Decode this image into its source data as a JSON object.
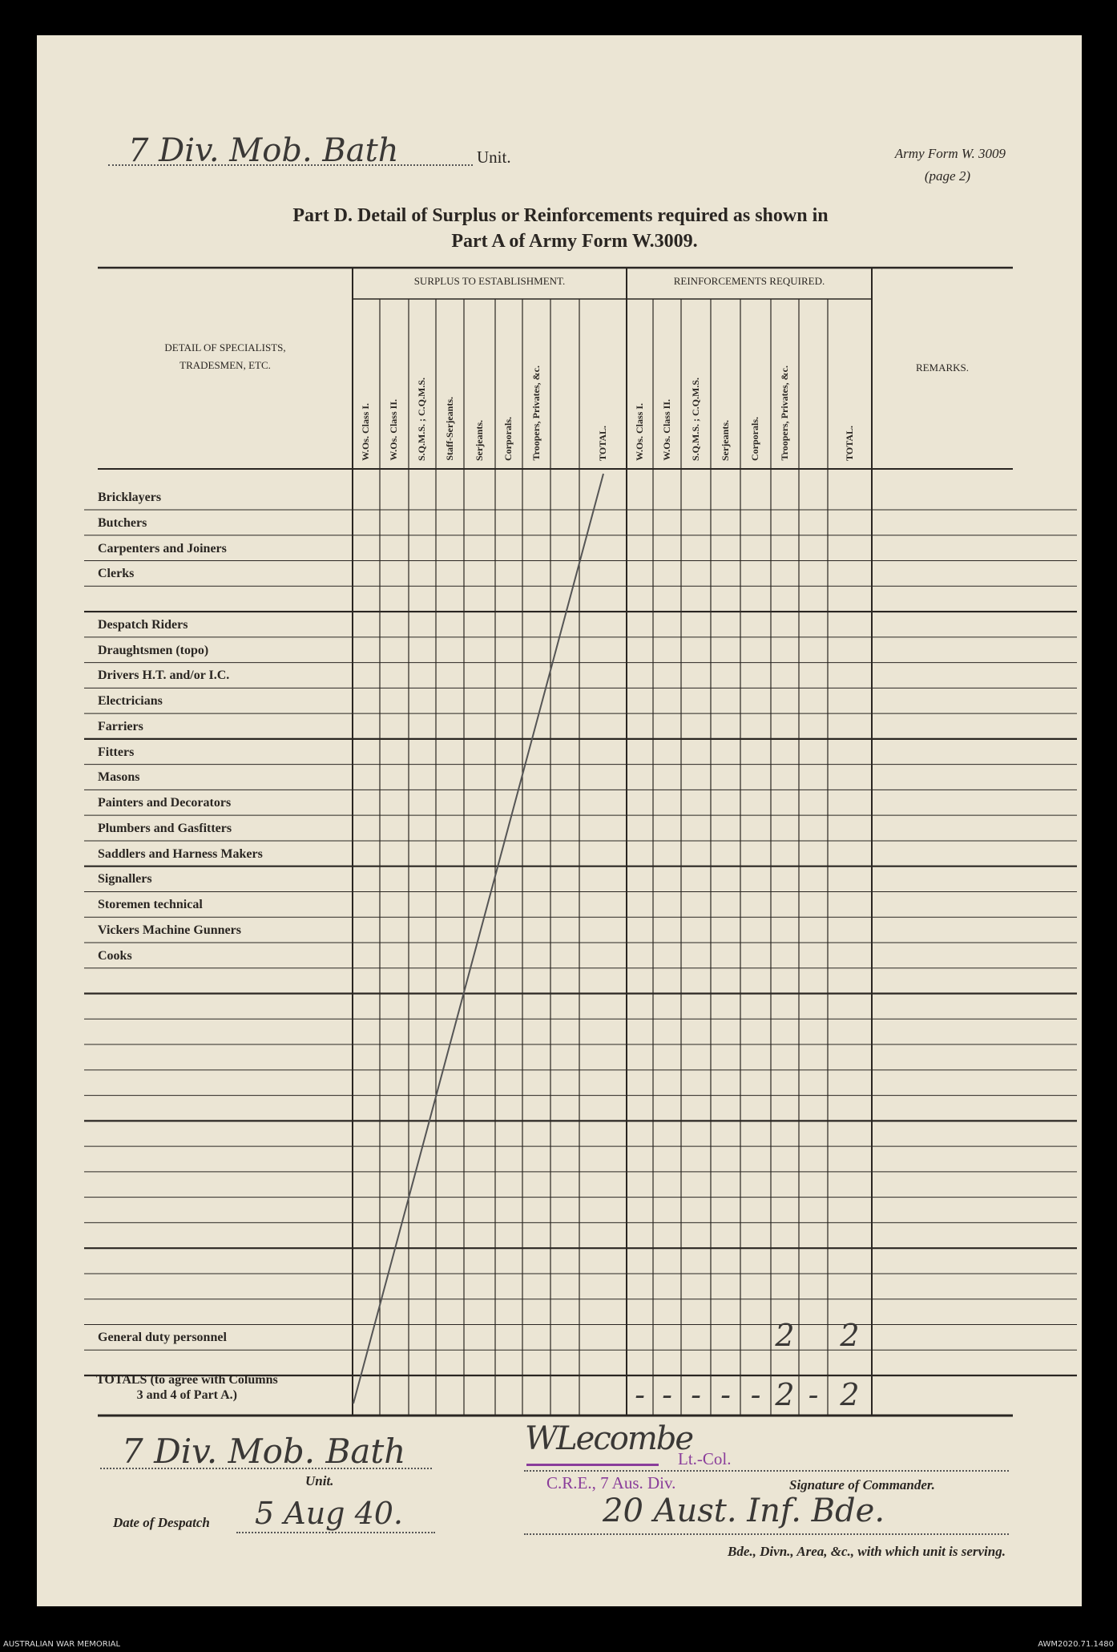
{
  "header": {
    "unit_handwritten": "7 Div. Mob. Bath",
    "unit_label": "Unit.",
    "form_name": "Army Form W. 3009",
    "form_page": "(page 2)",
    "title_line1": "Part D.   Detail of Surplus or Reinforcements required as shown in",
    "title_line2": "Part A of Army Form W.3009."
  },
  "table": {
    "detail_header_line1": "DETAIL OF SPECIALISTS,",
    "detail_header_line2": "TRADESMEN, ETC.",
    "surplus_header": "SURPLUS TO ESTABLISHMENT.",
    "reinforcements_header": "REINFORCEMENTS REQUIRED.",
    "remarks_header": "REMARKS.",
    "surplus_columns": [
      "W.Os. Class I.",
      "W.Os. Class II.",
      "S.Q.M.S. ; C.Q.M.S.",
      "Staff-Serjeants.",
      "Serjeants.",
      "Corporals.",
      "Troopers, Privates, &c.",
      "",
      "TOTAL."
    ],
    "reinforcement_columns": [
      "W.Os. Class I.",
      "W.Os. Class II.",
      "S.Q.M.S. ; C.Q.M.S.",
      "Serjeants.",
      "Corporals.",
      "Troopers, Privates, &c.",
      "",
      "TOTAL."
    ],
    "rows": [
      "Bricklayers",
      "Butchers",
      "Carpenters and Joiners",
      "Clerks",
      "",
      "Despatch Riders",
      "Draughtsmen (topo)",
      "Drivers H.T. and/or I.C.",
      "Electricians",
      "Farriers",
      "Fitters",
      "Masons",
      "Painters and Decorators",
      "Plumbers and Gasfitters",
      "Saddlers and Harness Makers",
      "Signallers",
      "Storemen technical",
      "Vickers Machine Gunners",
      "Cooks",
      "",
      "",
      "",
      "",
      "",
      "",
      "",
      "",
      "",
      "",
      "",
      "",
      "",
      "",
      "General duty personnel",
      ""
    ],
    "general_duty_values": {
      "reinf_troopers": "2",
      "reinf_total": "2"
    },
    "totals_label_line1": "TOTALS (to agree with Columns",
    "totals_label_line2": "3 and 4 of Part A.)",
    "totals_reinforcement_values": [
      "-",
      "-",
      "-",
      "-",
      "-",
      "2",
      "-",
      "2"
    ]
  },
  "footer": {
    "unit_handwritten": "7 Div. Mob. Bath",
    "unit_label": "Unit.",
    "date_label": "Date of Despatch",
    "date_handwritten": "5 Aug 40.",
    "signature": "WLecombe",
    "rank_stamp": "Lt.-Col.",
    "unit_stamp": "C.R.E., 7 Aus. Div.",
    "signature_label": "Signature of Commander.",
    "formation_handwritten": "20 Aust. Inf. Bde.",
    "formation_label": "Bde., Divn., Area, &c., with which unit is serving."
  },
  "archive": {
    "left_caption": "AUSTRALIAN WAR MEMORIAL",
    "right_caption": "AWM2020.71.1480"
  },
  "colors": {
    "paper": "#ebe5d4",
    "ink": "#2a2622",
    "stamp": "#8a3d9a",
    "background": "#000000"
  }
}
